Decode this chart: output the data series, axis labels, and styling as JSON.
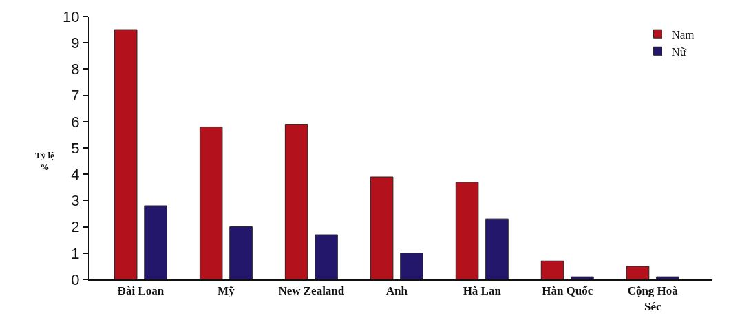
{
  "chart_data": {
    "type": "bar",
    "ylabel": "Tỷ lệ\n%",
    "categories": [
      "Đài Loan",
      "Mỹ",
      "New Zealand",
      "Anh",
      "Hà Lan",
      "Hàn Quốc",
      "Cộng Hoà\nSéc"
    ],
    "series": [
      {
        "name": "Nam",
        "color": "#b3121c",
        "values": [
          9.5,
          5.8,
          5.9,
          3.9,
          3.7,
          0.7,
          0.5
        ]
      },
      {
        "name": "Nữ",
        "color": "#23176b",
        "values": [
          2.8,
          2.0,
          1.7,
          1.0,
          2.3,
          0.1,
          0.1
        ]
      }
    ],
    "ylim": [
      0,
      10
    ],
    "yticks": [
      0,
      1,
      2,
      3,
      4,
      5,
      6,
      7,
      8,
      9,
      10
    ],
    "legend": "top right"
  }
}
